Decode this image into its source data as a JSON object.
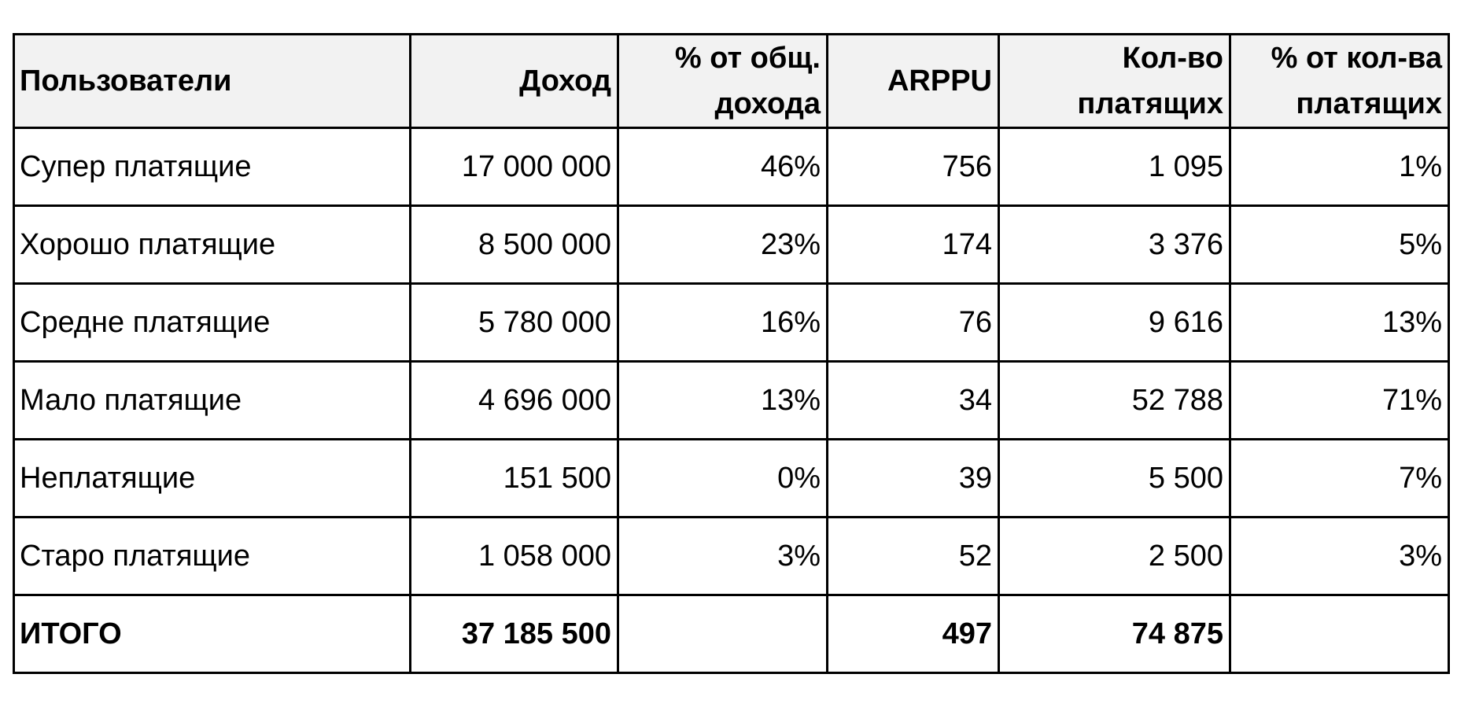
{
  "table": {
    "headers": [
      [
        "Пользователи"
      ],
      [
        "Доход"
      ],
      [
        "% от общ.",
        "дохода"
      ],
      [
        "ARPPU"
      ],
      [
        "Кол-во",
        "платящих"
      ],
      [
        "% от кол-ва",
        "платящих"
      ]
    ],
    "rows": [
      [
        "Супер платящие",
        "17 000 000",
        "46%",
        "756",
        "1 095",
        "1%"
      ],
      [
        "Хорошо платящие",
        "8 500 000",
        "23%",
        "174",
        "3 376",
        "5%"
      ],
      [
        "Средне платящие",
        "5 780 000",
        "16%",
        "76",
        "9 616",
        "13%"
      ],
      [
        "Мало платящие",
        "4 696 000",
        "13%",
        "34",
        "52 788",
        "71%"
      ],
      [
        "Неплатящие",
        "151 500",
        "0%",
        "39",
        "5 500",
        "7%"
      ],
      [
        "Старо платящие",
        "1 058 000",
        "3%",
        "52",
        "2 500",
        "3%"
      ]
    ],
    "total": [
      "ИТОГО",
      "37 185 500",
      "",
      "497",
      "74 875",
      ""
    ]
  }
}
